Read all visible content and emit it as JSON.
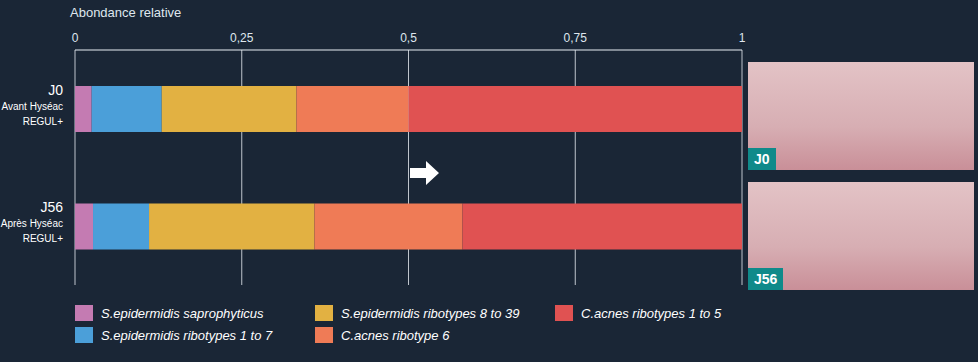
{
  "chart_data": {
    "type": "bar",
    "title": "Abondance relative",
    "orientation": "horizontal",
    "stacked": true,
    "grid": true,
    "legend": "bottom",
    "categories": [
      "J0 Avant Hyséac REGUL+",
      "J56 Après Hyséac REGUL+"
    ],
    "xlim": [
      0,
      1
    ],
    "xticks": [
      0,
      {
        "value": 0.25,
        "label": "0,25"
      },
      {
        "value": 0.5,
        "label": "0,5"
      },
      {
        "value": 0.75,
        "label": "0,75"
      },
      1
    ],
    "series": [
      {
        "name": "S.epidermidis saprophyticus",
        "color": "#c47bb2",
        "values": [
          0.025,
          0.027
        ]
      },
      {
        "name": "S.epidermidis ribotypes 1 to 7",
        "color": "#4b9fd9",
        "values": [
          0.105,
          0.084
        ]
      },
      {
        "name": "S.epidermidis ribotypes 8 to 39",
        "color": "#e2b142",
        "values": [
          0.202,
          0.248
        ]
      },
      {
        "name": "C.acnes ribotype 6",
        "color": "#ef7b56",
        "values": [
          0.168,
          0.222
        ]
      },
      {
        "name": "C.acnes ribotypes 1 to 5",
        "color": "#e05252",
        "values": [
          0.5,
          0.419
        ]
      }
    ]
  },
  "photos": [
    "J0",
    "J56"
  ]
}
